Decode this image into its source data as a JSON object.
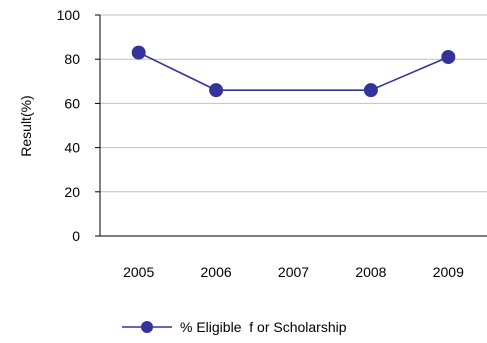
{
  "chart_data": {
    "type": "line",
    "title": "",
    "xlabel": "",
    "ylabel": "Result(%)",
    "categories": [
      "2005",
      "2006",
      "2007",
      "2008",
      "2009"
    ],
    "series": [
      {
        "name": "% Eligible  f or Scholarship",
        "values": [
          83,
          66,
          null,
          66,
          81
        ]
      }
    ],
    "ylim": [
      0,
      100
    ],
    "yticks": [
      "0",
      "20",
      "40",
      "60",
      "80",
      "100"
    ],
    "grid": true,
    "legend": "bottom",
    "colors": {
      "series": "#333399",
      "grid": "#c0c0c0",
      "axis": "#000000"
    }
  }
}
